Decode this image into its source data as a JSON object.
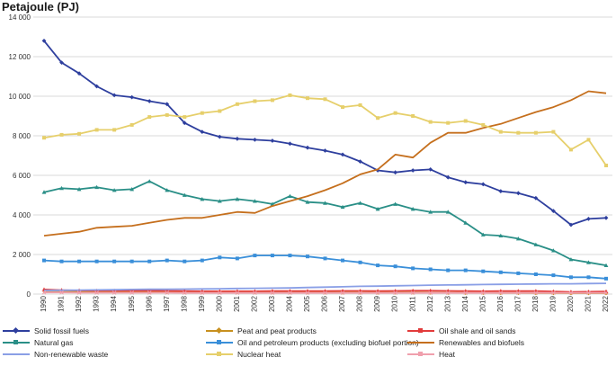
{
  "chart_data": {
    "type": "line",
    "title": "Petajoule (PJ)",
    "xlabel": "",
    "ylabel": "Petajoule (PJ)",
    "ylim": [
      0,
      14000
    ],
    "yticks": [
      "0",
      "2 000",
      "4 000",
      "6 000",
      "8 000",
      "10 000",
      "12 000",
      "14 000"
    ],
    "ytick_values": [
      0,
      2000,
      4000,
      6000,
      8000,
      10000,
      12000,
      14000
    ],
    "grid": true,
    "legend_position": "bottom",
    "x": [
      "1990",
      "1991",
      "1992",
      "1993",
      "1994",
      "1995",
      "1996",
      "1997",
      "1998",
      "1999",
      "2000",
      "2001",
      "2002",
      "2003",
      "2004",
      "2005",
      "2006",
      "2007",
      "2008",
      "2009",
      "2010",
      "2011",
      "2012",
      "2013",
      "2014",
      "2015",
      "2016",
      "2017",
      "2018",
      "2019",
      "2020",
      "2021",
      "2022"
    ],
    "series": [
      {
        "name": "Solid fossil fuels",
        "color": "#2e3f9e",
        "marker": "diamond",
        "values": [
          12800,
          11700,
          11150,
          10500,
          10050,
          9950,
          9750,
          9600,
          8650,
          8200,
          7950,
          7850,
          7800,
          7750,
          7600,
          7400,
          7250,
          7050,
          6700,
          6250,
          6150,
          6250,
          6300,
          5900,
          5650,
          5550,
          5200,
          5100,
          4850,
          4200,
          3500,
          3800,
          3850
        ]
      },
      {
        "name": "Peat and peat products",
        "color": "#c8901f",
        "marker": "diamond",
        "values": [
          150,
          140,
          130,
          120,
          120,
          120,
          115,
          110,
          100,
          95,
          95,
          95,
          90,
          90,
          90,
          85,
          85,
          80,
          80,
          75,
          80,
          80,
          75,
          70,
          65,
          65,
          60,
          60,
          55,
          50,
          45,
          45,
          45
        ]
      },
      {
        "name": "Oil shale and oil sands",
        "color": "#e23b3b",
        "marker": "triangle",
        "values": [
          230,
          200,
          180,
          170,
          170,
          170,
          170,
          160,
          150,
          140,
          140,
          140,
          140,
          150,
          150,
          150,
          150,
          160,
          160,
          150,
          160,
          170,
          170,
          160,
          150,
          140,
          150,
          150,
          150,
          130,
          110,
          120,
          130
        ]
      },
      {
        "name": "Natural gas",
        "color": "#2a8f87",
        "marker": "triangle",
        "values": [
          5150,
          5350,
          5300,
          5400,
          5250,
          5300,
          5700,
          5250,
          5000,
          4800,
          4700,
          4800,
          4700,
          4550,
          4950,
          4650,
          4600,
          4400,
          4600,
          4300,
          4550,
          4300,
          4150,
          4150,
          3600,
          3000,
          2950,
          2800,
          2500,
          2200,
          1750,
          1600,
          1450
        ]
      },
      {
        "name": "Oil and petroleum products (excluding biofuel portion)",
        "color": "#3a8fd9",
        "marker": "square",
        "values": [
          1700,
          1650,
          1650,
          1650,
          1650,
          1650,
          1650,
          1700,
          1650,
          1700,
          1850,
          1800,
          1950,
          1950,
          1950,
          1900,
          1800,
          1700,
          1600,
          1450,
          1400,
          1300,
          1250,
          1200,
          1200,
          1150,
          1100,
          1050,
          1000,
          950,
          850,
          850,
          780
        ]
      },
      {
        "name": "Renewables and biofuels",
        "color": "#c56f1d",
        "marker": "none",
        "values": [
          2950,
          3050,
          3150,
          3350,
          3400,
          3450,
          3600,
          3750,
          3850,
          3850,
          4000,
          4150,
          4100,
          4450,
          4700,
          4950,
          5250,
          5600,
          6050,
          6300,
          7050,
          6900,
          7650,
          8150,
          8150,
          8400,
          8600,
          8900,
          9200,
          9450,
          9800,
          10250,
          10150
        ]
      },
      {
        "name": "Non-renewable waste",
        "color": "#8a9fe6",
        "marker": "none",
        "values": [
          180,
          190,
          200,
          210,
          220,
          230,
          240,
          240,
          250,
          260,
          270,
          280,
          290,
          300,
          310,
          330,
          350,
          370,
          390,
          400,
          420,
          430,
          450,
          460,
          470,
          480,
          490,
          500,
          510,
          520,
          520,
          530,
          540
        ]
      },
      {
        "name": "Nuclear heat",
        "color": "#e6cf6b",
        "marker": "square",
        "values": [
          7900,
          8050,
          8100,
          8300,
          8300,
          8550,
          8950,
          9050,
          8950,
          9150,
          9250,
          9600,
          9750,
          9800,
          10050,
          9900,
          9850,
          9450,
          9550,
          8900,
          9150,
          9000,
          8700,
          8650,
          8750,
          8550,
          8200,
          8150,
          8150,
          8200,
          7300,
          7800,
          6500
        ]
      },
      {
        "name": "Heat",
        "color": "#f0a0ad",
        "marker": "x",
        "values": [
          80,
          80,
          70,
          70,
          70,
          70,
          70,
          70,
          60,
          60,
          60,
          60,
          60,
          60,
          60,
          60,
          60,
          60,
          60,
          60,
          60,
          60,
          60,
          60,
          60,
          60,
          60,
          60,
          60,
          60,
          60,
          60,
          60
        ]
      }
    ]
  }
}
